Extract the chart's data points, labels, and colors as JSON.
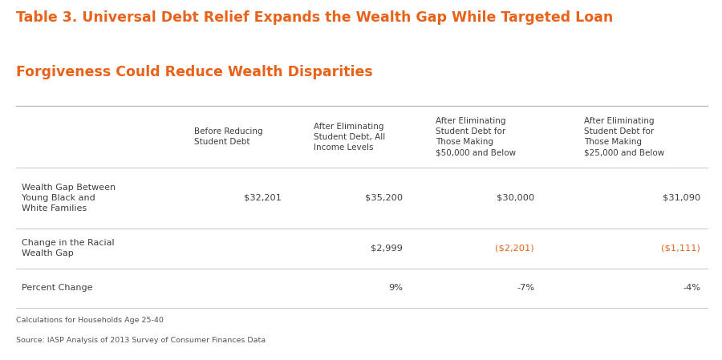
{
  "title_line1": "Table 3. Universal Debt Relief Expands the Wealth Gap While Targeted Loan",
  "title_line2": "Forgiveness Could Reduce Wealth Disparities",
  "title_color": "#E8621A",
  "background_color": "#FFFFFF",
  "col_headers": [
    "Before Reducing\nStudent Debt",
    "After Eliminating\nStudent Debt, All\nIncome Levels",
    "After Eliminating\nStudent Debt for\nThose Making\n$50,000 and Below",
    "After Eliminating\nStudent Debt for\nThose Making\n$25,000 and Below"
  ],
  "row_headers": [
    "Wealth Gap Between\nYoung Black and\nWhite Families",
    "Change in the Racial\nWealth Gap",
    "Percent Change"
  ],
  "cell_data": [
    [
      "$32,201",
      "$35,200",
      "$30,000",
      "$31,090"
    ],
    [
      "",
      "$2,999",
      "($2,201)",
      "($1,111)"
    ],
    [
      "",
      "9%",
      "-7%",
      "-4%"
    ]
  ],
  "cell_colors": [
    [
      "#3d3d3d",
      "#3d3d3d",
      "#3d3d3d",
      "#3d3d3d"
    ],
    [
      "#3d3d3d",
      "#3d3d3d",
      "#E8621A",
      "#E8621A"
    ],
    [
      "#3d3d3d",
      "#3d3d3d",
      "#3d3d3d",
      "#3d3d3d"
    ]
  ],
  "footer_line1": "Calculations for Households Age 25-40",
  "footer_line2": "Source: IASP Analysis of 2013 Survey of Consumer Finances Data",
  "header_text_color": "#3d3d3d",
  "row_header_color": "#3d3d3d",
  "line_color": "#cccccc",
  "fig_width": 9.0,
  "fig_height": 4.49
}
